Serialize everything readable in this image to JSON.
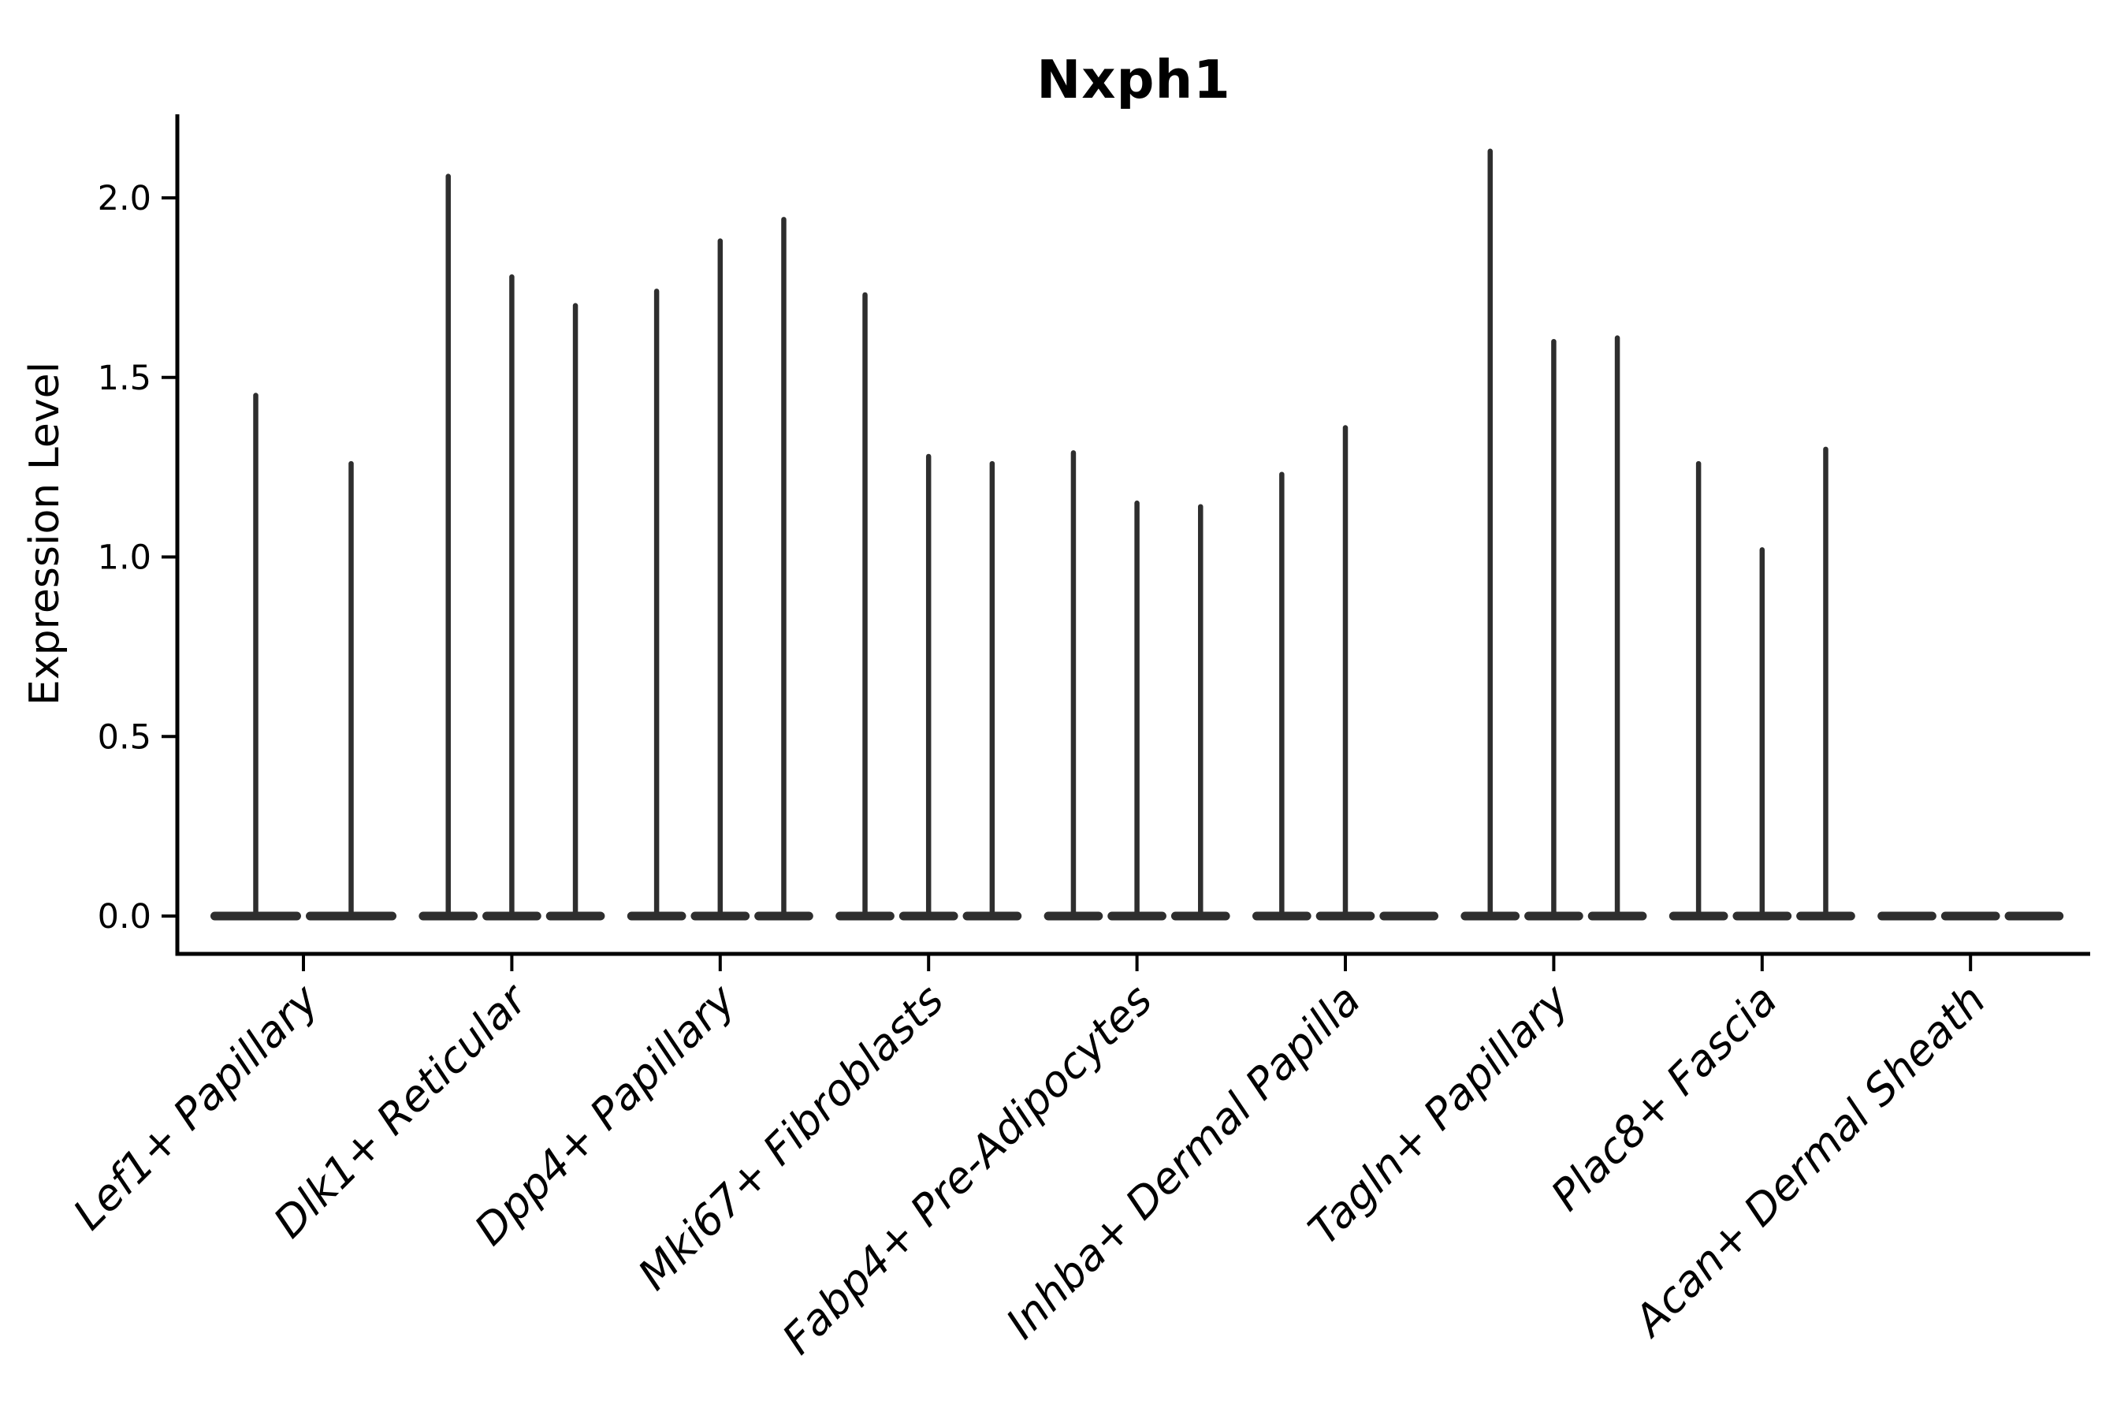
{
  "chart_data": {
    "type": "violin",
    "title": "Nxph1",
    "ylabel": "Expression Level",
    "xlabel": "",
    "ytick_labels": [
      "0.0",
      "0.5",
      "1.0",
      "1.5",
      "2.0"
    ],
    "ytick_values": [
      0.0,
      0.5,
      1.0,
      1.5,
      2.0
    ],
    "ylim": [
      -0.11,
      2.23
    ],
    "grid": false,
    "legend": "none",
    "description": "Thin spike-shaped violins; each category shows 2-3 violins whose flat wide bases sit at expression 0 and thin tails reach the listed maximum expression value. A max of 0 means a flat violin (no spike).",
    "categories": [
      "Lef1+ Papillary",
      "Dlk1+ Reticular",
      "Dpp4+ Papillary",
      "Mki67+ Fibroblasts",
      "Fabp4+ Pre-Adipocytes",
      "Inhba+ Dermal Papilla",
      "Tagln+ Papillary",
      "Plac8+ Fascia",
      "Acan+ Dermal Sheath"
    ],
    "groups": [
      {
        "category": "Lef1+ Papillary",
        "violin_max_values": [
          1.45,
          1.26
        ]
      },
      {
        "category": "Dlk1+ Reticular",
        "violin_max_values": [
          2.06,
          1.78,
          1.7
        ]
      },
      {
        "category": "Dpp4+ Papillary",
        "violin_max_values": [
          1.74,
          1.88,
          1.94
        ]
      },
      {
        "category": "Mki67+ Fibroblasts",
        "violin_max_values": [
          1.73,
          1.28,
          1.26
        ]
      },
      {
        "category": "Fabp4+ Pre-Adipocytes",
        "violin_max_values": [
          1.29,
          1.15,
          1.14
        ]
      },
      {
        "category": "Inhba+ Dermal Papilla",
        "violin_max_values": [
          1.23,
          1.36,
          0
        ]
      },
      {
        "category": "Tagln+ Papillary",
        "violin_max_values": [
          2.13,
          1.6,
          1.61
        ]
      },
      {
        "category": "Plac8+ Fascia",
        "violin_max_values": [
          1.26,
          1.02,
          1.3
        ]
      },
      {
        "category": "Acan+ Dermal Sheath",
        "violin_max_values": [
          0,
          0,
          0
        ]
      }
    ],
    "colors": {
      "violin": "#2e2e2e",
      "axis": "#000000",
      "text": "#000000",
      "background": "#ffffff"
    }
  }
}
